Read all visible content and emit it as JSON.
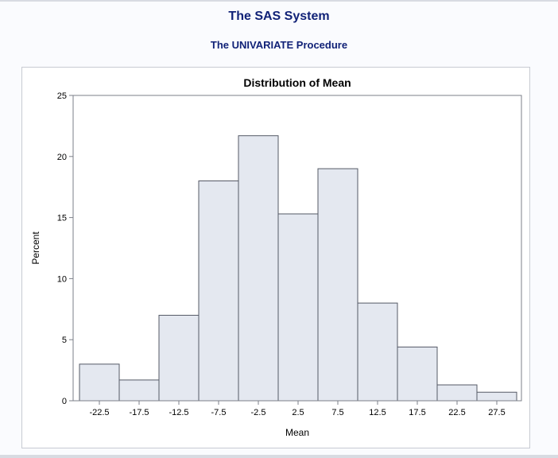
{
  "header": {
    "title": "The SAS System",
    "subtitle": "The UNIVARIATE Procedure"
  },
  "colors": {
    "title": "#112277",
    "bar_fill": "#e4e8f0",
    "bar_stroke": "#555a66",
    "axis": "#7b7f88"
  },
  "chart_data": {
    "type": "bar",
    "title": "Distribution of Mean",
    "xlabel": "Mean",
    "ylabel": "Percent",
    "categories": [
      "-22.5",
      "-17.5",
      "-12.5",
      "-7.5",
      "-2.5",
      "2.5",
      "7.5",
      "12.5",
      "17.5",
      "22.5",
      "27.5"
    ],
    "values": [
      3.0,
      1.7,
      7.0,
      18.0,
      21.7,
      15.3,
      19.0,
      8.0,
      4.4,
      1.3,
      0.7
    ],
    "bin_width": 5,
    "ylim": [
      0,
      25
    ],
    "yticks": [
      0,
      5,
      10,
      15,
      20,
      25
    ],
    "grid": false,
    "legend": "none"
  }
}
